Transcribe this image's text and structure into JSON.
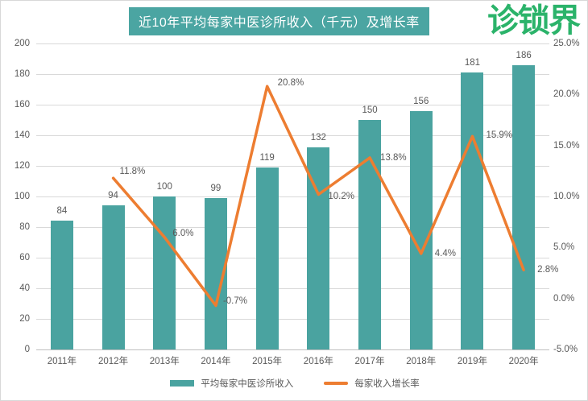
{
  "brand": {
    "logo_text": "诊锁界",
    "logo_color": "#2BB36A"
  },
  "chart_data": {
    "type": "bar+line combo",
    "title": "近10年平均每家中医诊所收入（千元）及增长率",
    "title_bg_color": "#4BA5A2",
    "categories": [
      "2011年",
      "2012年",
      "2013年",
      "2014年",
      "2015年",
      "2016年",
      "2017年",
      "2018年",
      "2019年",
      "2020年"
    ],
    "series": [
      {
        "name": "平均每家中医诊所收入",
        "type": "bar",
        "axis": "left",
        "color": "#4AA3A0",
        "values": [
          84,
          94,
          100,
          99,
          119,
          132,
          150,
          156,
          181,
          186
        ],
        "value_labels": [
          "84",
          "94",
          "100",
          "99",
          "119",
          "132",
          "150",
          "156",
          "181",
          "186"
        ]
      },
      {
        "name": "每家收入增长率",
        "type": "line",
        "axis": "right",
        "color": "#ED7D31",
        "values": [
          null,
          11.8,
          6.0,
          -0.7,
          20.8,
          10.2,
          13.8,
          4.4,
          15.9,
          2.8
        ],
        "value_labels": [
          "",
          "11.8%",
          "6.0%",
          "-0.7%",
          "20.8%",
          "10.2%",
          "13.8%",
          "4.4%",
          "15.9%",
          "2.8%"
        ]
      }
    ],
    "left_axis": {
      "min": 0,
      "max": 200,
      "step": 20,
      "tick_labels": [
        "0",
        "20",
        "40",
        "60",
        "80",
        "100",
        "120",
        "140",
        "160",
        "180",
        "200"
      ]
    },
    "right_axis": {
      "min": -5,
      "max": 25,
      "step": 5,
      "tick_labels": [
        "-5.0%",
        "0.0%",
        "5.0%",
        "10.0%",
        "15.0%",
        "20.0%",
        "25.0%"
      ]
    },
    "grid": true,
    "legend_position": "bottom",
    "text_color": "#595959",
    "grid_color": "#D9D9D9",
    "baseline_color": "#BFBFBF"
  }
}
